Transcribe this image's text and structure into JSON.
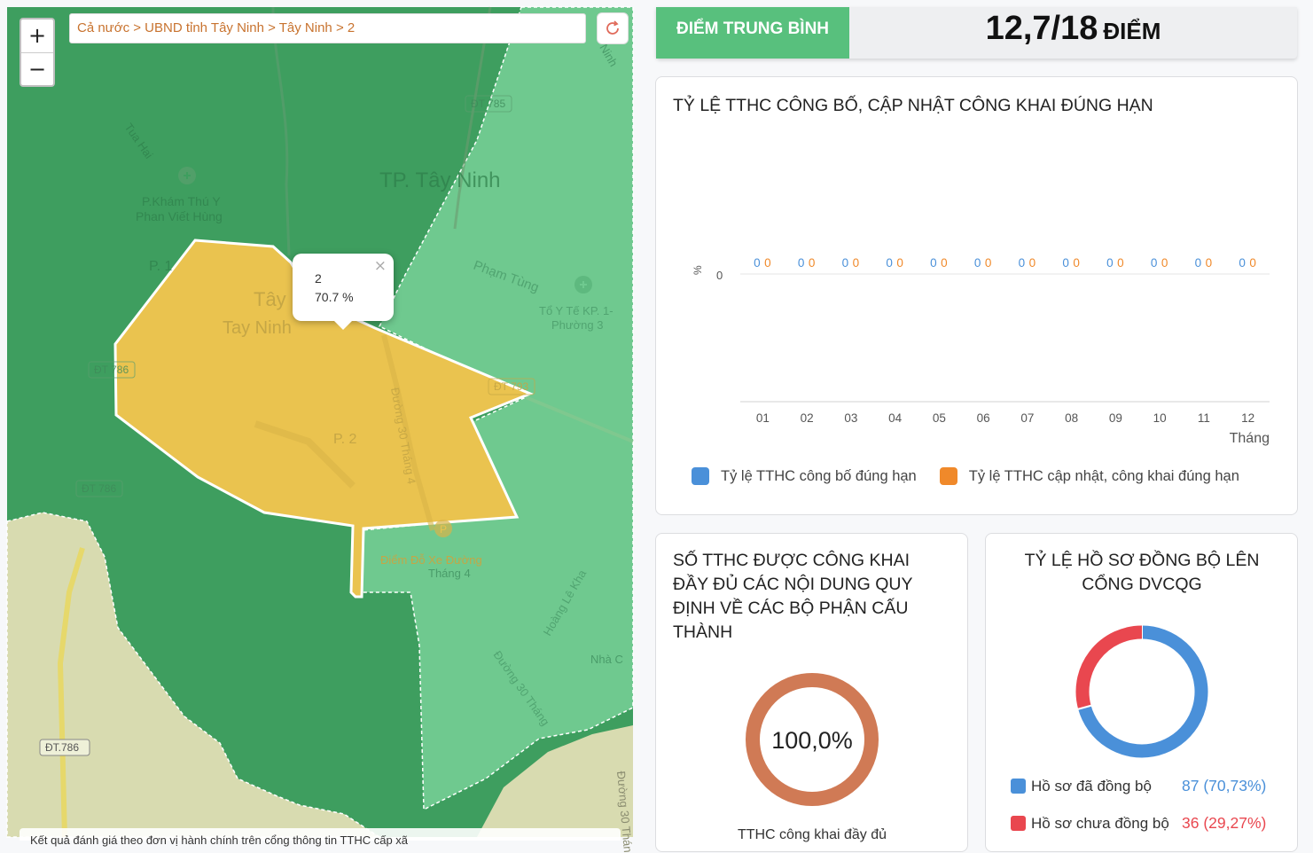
{
  "map": {
    "zoom_in": "+",
    "zoom_out": "−",
    "breadcrumb": "Cả nước > UBND tỉnh Tây Ninh > Tây Ninh > 2",
    "popup": {
      "name": "2",
      "value": "70.7 %",
      "close": "×"
    },
    "labels": {
      "city": "TP. Tây Ninh",
      "clinic_1": "P.Khám Thú Y",
      "clinic_2": "Phan Viết Hùng",
      "health_1": "Tổ Y Tế KP. 1-",
      "health_2": "Phường 3",
      "street_pham_tung": "Phạm Tùng",
      "street_tua_hai": "Tua Hai",
      "street_30_thang_4": "Đường 30 Tháng 4",
      "street_30_thang_4_b": "Đường 30 Tháng",
      "street_hoang_le_kha": "Hoàng Lê Kha",
      "ward": "P. 2",
      "ward_1": "P. 1",
      "ward_name_1": "Tây",
      "ward_name_2": "Tay Ninh",
      "parking_1": "Điểm Đỗ Xe Đường",
      "parking_2": "Tháng 4",
      "nha": "Nhà C",
      "road_dt785": "ĐT 785",
      "road_dt786_a": "ĐT 786",
      "road_dt786_b": "ĐT 786",
      "road_dt786_c": "ĐT.786",
      "road_dt793": "ĐT 793",
      "tinh": "Ninh",
      "tu30": "Đường 30 Thán"
    },
    "colors": {
      "dark_green": "#3e9e5f",
      "light_green": "#6fc98f",
      "highlight": "#eac34f",
      "land": "#d8dbb0"
    },
    "footer": "Kết quả đánh giá theo đơn vị hành chính trên cổng thông tin TTHC cấp xã"
  },
  "score": {
    "label": "ĐIỂM TRUNG BÌNH",
    "value": "12,7/18",
    "unit": "ĐIỂM"
  },
  "chart_card": {
    "title": "TỶ LỆ TTHC CÔNG BỐ, CẬP NHẬT CÔNG KHAI ĐÚNG HẠN"
  },
  "chart_data": {
    "type": "line",
    "categories": [
      "01",
      "02",
      "03",
      "04",
      "05",
      "06",
      "07",
      "08",
      "09",
      "10",
      "11",
      "12"
    ],
    "series": [
      {
        "name": "Tỷ lệ TTHC công bố đúng hạn",
        "values": [
          0,
          0,
          0,
          0,
          0,
          0,
          0,
          0,
          0,
          0,
          0,
          0
        ],
        "color": "#4a90d9"
      },
      {
        "name": "Tỷ lệ TTHC cập nhật, công khai đúng hạn",
        "values": [
          0,
          0,
          0,
          0,
          0,
          0,
          0,
          0,
          0,
          0,
          0,
          0
        ],
        "color": "#f0892a"
      }
    ],
    "data_labels": [
      "0",
      "0"
    ],
    "ylabel": "%",
    "ytick": "0",
    "xlabel": "Tháng",
    "legend_position": "bottom"
  },
  "public_card": {
    "title": "SỐ TTHC ĐƯỢC CÔNG KHAI ĐẦY ĐỦ CÁC NỘI DUNG QUY ĐỊNH VỀ CÁC BỘ PHẬN CẤU THÀNH",
    "donut_value": "100,0%",
    "caption": "TTHC công khai đầy đủ",
    "percent": 100,
    "color": "#d07a55"
  },
  "sync_card": {
    "title": "TỶ LỆ HỒ SƠ ĐỒNG BỘ LÊN CỔNG DVCQG",
    "items": [
      {
        "label": "Hồ sơ đã đồng bộ",
        "value": "87 (70,73%)",
        "count": 87,
        "color": "#4a90d9"
      },
      {
        "label": "Hồ sơ chưa đồng bộ",
        "value": "36 (29,27%)",
        "count": 36,
        "color": "#e9474f"
      }
    ]
  }
}
